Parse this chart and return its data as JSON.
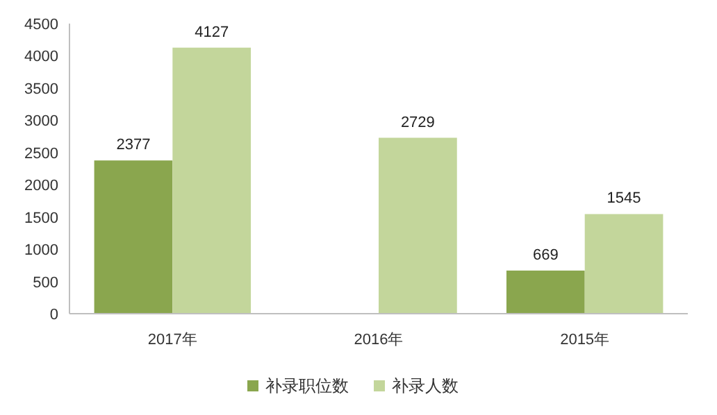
{
  "chart_data": {
    "type": "bar",
    "categories": [
      "2017年",
      "2016年",
      "2015年"
    ],
    "series": [
      {
        "name": "补录职位数",
        "color": "#8aa64e",
        "values": [
          2377,
          null,
          669
        ]
      },
      {
        "name": "补录人数",
        "color": "#c3d69b",
        "values": [
          4127,
          2729,
          1545
        ]
      }
    ],
    "ylim": [
      0,
      4500
    ],
    "yticks": [
      0,
      500,
      1000,
      1500,
      2000,
      2500,
      3000,
      3500,
      4000,
      4500
    ],
    "data_labels": true,
    "legend": "bottom",
    "grid": false
  }
}
